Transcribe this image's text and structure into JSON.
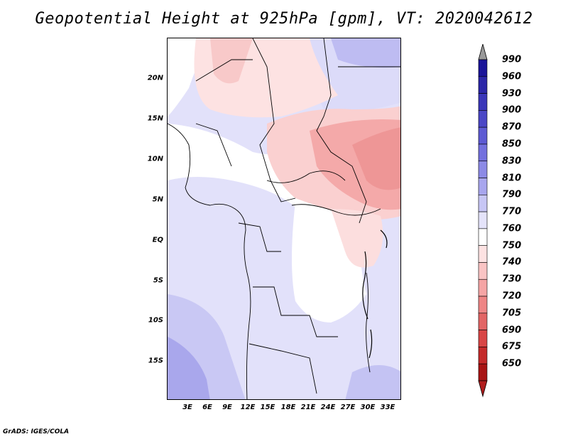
{
  "title": "Geopotential Height at 925hPa [gpm], VT: 2020042612",
  "credit": "GrADS: IGES/COLA",
  "map": {
    "lat_labels": [
      "20N",
      "15N",
      "10N",
      "5N",
      "EQ",
      "5S",
      "10S",
      "15S"
    ],
    "lon_labels": [
      "3E",
      "6E",
      "9E",
      "12E",
      "15E",
      "18E",
      "21E",
      "24E",
      "27E",
      "30E",
      "33E"
    ]
  },
  "colorbar": {
    "levels": [
      "990",
      "960",
      "930",
      "900",
      "870",
      "850",
      "830",
      "810",
      "790",
      "770",
      "760",
      "750",
      "740",
      "730",
      "720",
      "705",
      "690",
      "675",
      "650"
    ],
    "colors": [
      "#1a1499",
      "#2b26a8",
      "#3a36b9",
      "#4a46c6",
      "#5d5ad3",
      "#7370de",
      "#8c8ae6",
      "#a8a6ee",
      "#c7c6f5",
      "#e4e3fa",
      "#ffffff",
      "#fde2e2",
      "#fac4c4",
      "#f5a5a5",
      "#ee8585",
      "#e26565",
      "#d84545",
      "#c42a2a",
      "#a81414"
    ],
    "over_color": "#999999",
    "under_color": "#b01c1c"
  }
}
